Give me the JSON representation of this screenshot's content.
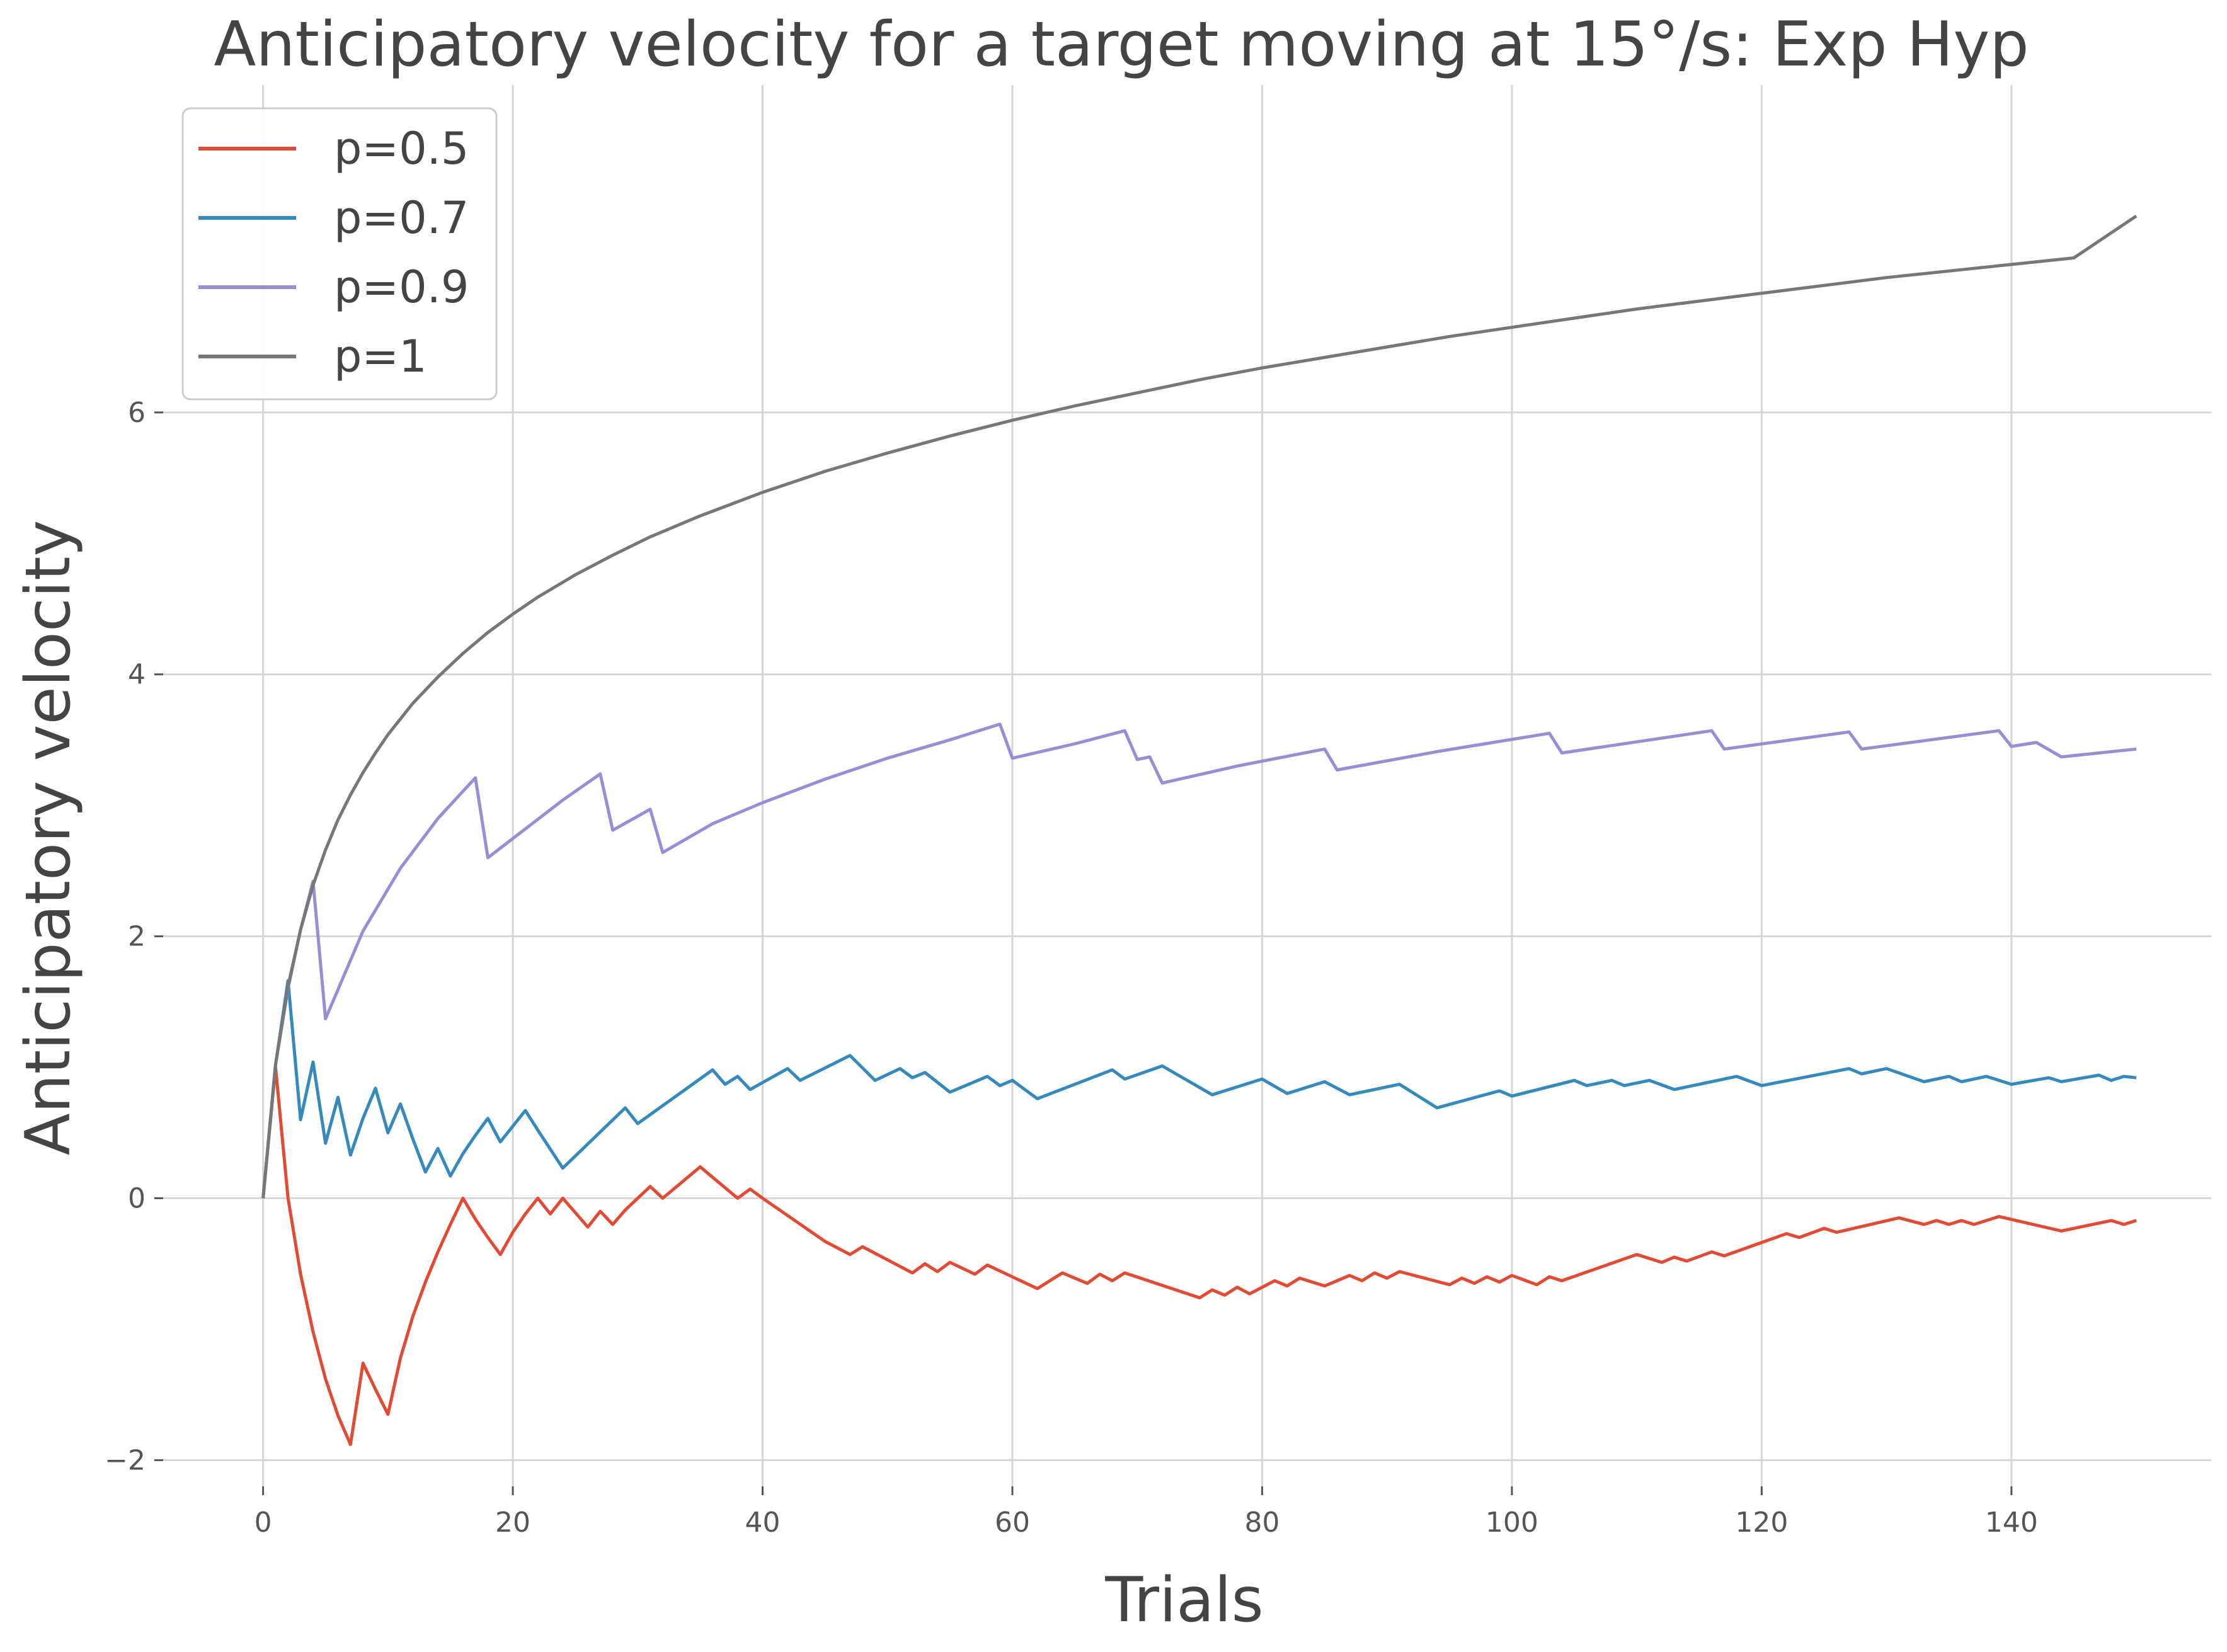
{
  "chart_data": {
    "type": "line",
    "title": "Anticipatory velocity for a target moving at 15°/s: Exp Hyp",
    "xlabel": "Trials",
    "ylabel": "Anticipatory velocity",
    "xlim": [
      -8,
      156
    ],
    "ylim": [
      -2.2,
      8.5
    ],
    "xticks": [
      0,
      20,
      40,
      60,
      80,
      100,
      120,
      140
    ],
    "yticks": [
      -2,
      0,
      2,
      4,
      6
    ],
    "grid": true,
    "legend_position": "top-left",
    "series": [
      {
        "name": "p=0.5",
        "color": "#E24A33",
        "points": [
          [
            0,
            0
          ],
          [
            1,
            1.0
          ],
          [
            2,
            0.0
          ],
          [
            3,
            -0.58
          ],
          [
            4,
            -1.02
          ],
          [
            5,
            -1.38
          ],
          [
            6,
            -1.66
          ],
          [
            7,
            -1.88
          ],
          [
            8,
            -1.26
          ],
          [
            9,
            -1.46
          ],
          [
            10,
            -1.65
          ],
          [
            11,
            -1.22
          ],
          [
            12,
            -0.9
          ],
          [
            13,
            -0.64
          ],
          [
            14,
            -0.41
          ],
          [
            15,
            -0.2
          ],
          [
            16,
            0.0
          ],
          [
            17,
            -0.16
          ],
          [
            18,
            -0.3
          ],
          [
            19,
            -0.43
          ],
          [
            20,
            -0.26
          ],
          [
            21,
            -0.12
          ],
          [
            22,
            0.0
          ],
          [
            23,
            -0.12
          ],
          [
            24,
            0.0
          ],
          [
            25,
            -0.11
          ],
          [
            26,
            -0.22
          ],
          [
            27,
            -0.1
          ],
          [
            28,
            -0.2
          ],
          [
            29,
            -0.09
          ],
          [
            30,
            0.0
          ],
          [
            31,
            0.09
          ],
          [
            32,
            0.0
          ],
          [
            33,
            0.08
          ],
          [
            34,
            0.16
          ],
          [
            35,
            0.24
          ],
          [
            36,
            0.16
          ],
          [
            37,
            0.08
          ],
          [
            38,
            0.0
          ],
          [
            39,
            0.07
          ],
          [
            40,
            0.0
          ],
          [
            45,
            -0.33
          ],
          [
            47,
            -0.43
          ],
          [
            48,
            -0.37
          ],
          [
            52,
            -0.57
          ],
          [
            53,
            -0.5
          ],
          [
            54,
            -0.56
          ],
          [
            55,
            -0.49
          ],
          [
            57,
            -0.58
          ],
          [
            58,
            -0.51
          ],
          [
            62,
            -0.69
          ],
          [
            64,
            -0.57
          ],
          [
            66,
            -0.65
          ],
          [
            67,
            -0.58
          ],
          [
            68,
            -0.63
          ],
          [
            69,
            -0.57
          ],
          [
            75,
            -0.76
          ],
          [
            76,
            -0.7
          ],
          [
            77,
            -0.74
          ],
          [
            78,
            -0.68
          ],
          [
            79,
            -0.73
          ],
          [
            81,
            -0.63
          ],
          [
            82,
            -0.67
          ],
          [
            83,
            -0.61
          ],
          [
            85,
            -0.67
          ],
          [
            87,
            -0.59
          ],
          [
            88,
            -0.63
          ],
          [
            89,
            -0.57
          ],
          [
            90,
            -0.61
          ],
          [
            91,
            -0.56
          ],
          [
            95,
            -0.66
          ],
          [
            96,
            -0.61
          ],
          [
            97,
            -0.65
          ],
          [
            98,
            -0.6
          ],
          [
            99,
            -0.64
          ],
          [
            100,
            -0.59
          ],
          [
            102,
            -0.66
          ],
          [
            103,
            -0.6
          ],
          [
            104,
            -0.63
          ],
          [
            110,
            -0.43
          ],
          [
            112,
            -0.49
          ],
          [
            113,
            -0.45
          ],
          [
            114,
            -0.48
          ],
          [
            116,
            -0.41
          ],
          [
            117,
            -0.44
          ],
          [
            122,
            -0.27
          ],
          [
            123,
            -0.3
          ],
          [
            125,
            -0.23
          ],
          [
            126,
            -0.26
          ],
          [
            131,
            -0.15
          ],
          [
            133,
            -0.2
          ],
          [
            134,
            -0.17
          ],
          [
            135,
            -0.2
          ],
          [
            136,
            -0.17
          ],
          [
            137,
            -0.2
          ],
          [
            139,
            -0.14
          ],
          [
            144,
            -0.25
          ],
          [
            148,
            -0.17
          ],
          [
            149,
            -0.2
          ],
          [
            150,
            -0.17
          ]
        ]
      },
      {
        "name": "p=0.7",
        "color": "#348ABD",
        "points": [
          [
            0,
            0
          ],
          [
            1,
            1.02
          ],
          [
            2,
            1.66
          ],
          [
            3,
            0.6
          ],
          [
            4,
            1.04
          ],
          [
            5,
            0.42
          ],
          [
            6,
            0.77
          ],
          [
            7,
            0.33
          ],
          [
            8,
            0.61
          ],
          [
            9,
            0.84
          ],
          [
            10,
            0.5
          ],
          [
            11,
            0.72
          ],
          [
            12,
            0.45
          ],
          [
            13,
            0.2
          ],
          [
            14,
            0.38
          ],
          [
            15,
            0.17
          ],
          [
            16,
            0.34
          ],
          [
            17,
            0.48
          ],
          [
            18,
            0.61
          ],
          [
            19,
            0.43
          ],
          [
            21,
            0.67
          ],
          [
            22,
            0.52
          ],
          [
            24,
            0.23
          ],
          [
            29,
            0.69
          ],
          [
            30,
            0.57
          ],
          [
            36,
            0.98
          ],
          [
            37,
            0.87
          ],
          [
            38,
            0.93
          ],
          [
            39,
            0.83
          ],
          [
            42,
            0.99
          ],
          [
            43,
            0.9
          ],
          [
            47,
            1.09
          ],
          [
            49,
            0.9
          ],
          [
            51,
            0.99
          ],
          [
            52,
            0.92
          ],
          [
            53,
            0.96
          ],
          [
            55,
            0.81
          ],
          [
            58,
            0.93
          ],
          [
            59,
            0.86
          ],
          [
            60,
            0.9
          ],
          [
            62,
            0.76
          ],
          [
            68,
            0.98
          ],
          [
            69,
            0.91
          ],
          [
            72,
            1.01
          ],
          [
            76,
            0.79
          ],
          [
            80,
            0.91
          ],
          [
            82,
            0.8
          ],
          [
            85,
            0.89
          ],
          [
            87,
            0.79
          ],
          [
            91,
            0.87
          ],
          [
            94,
            0.69
          ],
          [
            99,
            0.82
          ],
          [
            100,
            0.78
          ],
          [
            105,
            0.9
          ],
          [
            106,
            0.86
          ],
          [
            108,
            0.9
          ],
          [
            109,
            0.86
          ],
          [
            111,
            0.9
          ],
          [
            113,
            0.83
          ],
          [
            118,
            0.93
          ],
          [
            120,
            0.86
          ],
          [
            127,
            0.99
          ],
          [
            128,
            0.95
          ],
          [
            130,
            0.99
          ],
          [
            133,
            0.89
          ],
          [
            135,
            0.93
          ],
          [
            136,
            0.89
          ],
          [
            138,
            0.93
          ],
          [
            140,
            0.87
          ],
          [
            143,
            0.92
          ],
          [
            144,
            0.89
          ],
          [
            147,
            0.94
          ],
          [
            148,
            0.9
          ],
          [
            149,
            0.93
          ],
          [
            150,
            0.92
          ]
        ]
      },
      {
        "name": "p=0.9",
        "color": "#988ED5",
        "points": [
          [
            0,
            0
          ],
          [
            1,
            1.02
          ],
          [
            2,
            1.6
          ],
          [
            3,
            2.05
          ],
          [
            4,
            2.42
          ],
          [
            5,
            1.37
          ],
          [
            8,
            2.04
          ],
          [
            11,
            2.52
          ],
          [
            14,
            2.9
          ],
          [
            17,
            3.21
          ],
          [
            18,
            2.6
          ],
          [
            21,
            2.82
          ],
          [
            24,
            3.04
          ],
          [
            27,
            3.24
          ],
          [
            28,
            2.81
          ],
          [
            31,
            2.97
          ],
          [
            32,
            2.64
          ],
          [
            36,
            2.86
          ],
          [
            40,
            3.02
          ],
          [
            45,
            3.2
          ],
          [
            50,
            3.36
          ],
          [
            55,
            3.5
          ],
          [
            59,
            3.62
          ],
          [
            60,
            3.36
          ],
          [
            65,
            3.47
          ],
          [
            69,
            3.57
          ],
          [
            70,
            3.35
          ],
          [
            71,
            3.37
          ],
          [
            72,
            3.17
          ],
          [
            78,
            3.3
          ],
          [
            85,
            3.43
          ],
          [
            86,
            3.27
          ],
          [
            94,
            3.41
          ],
          [
            103,
            3.55
          ],
          [
            104,
            3.4
          ],
          [
            116,
            3.57
          ],
          [
            117,
            3.43
          ],
          [
            127,
            3.56
          ],
          [
            128,
            3.43
          ],
          [
            139,
            3.57
          ],
          [
            140,
            3.45
          ],
          [
            142,
            3.48
          ],
          [
            144,
            3.37
          ],
          [
            150,
            3.43
          ]
        ]
      },
      {
        "name": "p=1",
        "color": "#777777",
        "points": [
          [
            0,
            0
          ],
          [
            1,
            1.02
          ],
          [
            2,
            1.62
          ],
          [
            3,
            2.05
          ],
          [
            4,
            2.39
          ],
          [
            5,
            2.66
          ],
          [
            6,
            2.89
          ],
          [
            7,
            3.08
          ],
          [
            8,
            3.25
          ],
          [
            9,
            3.4
          ],
          [
            10,
            3.54
          ],
          [
            12,
            3.78
          ],
          [
            14,
            3.98
          ],
          [
            16,
            4.16
          ],
          [
            18,
            4.32
          ],
          [
            20,
            4.46
          ],
          [
            22,
            4.59
          ],
          [
            25,
            4.76
          ],
          [
            28,
            4.91
          ],
          [
            31,
            5.05
          ],
          [
            35,
            5.21
          ],
          [
            40,
            5.39
          ],
          [
            45,
            5.55
          ],
          [
            50,
            5.69
          ],
          [
            55,
            5.82
          ],
          [
            60,
            5.94
          ],
          [
            65,
            6.05
          ],
          [
            70,
            6.15
          ],
          [
            75,
            6.25
          ],
          [
            80,
            6.34
          ],
          [
            85,
            6.42
          ],
          [
            90,
            6.5
          ],
          [
            95,
            6.58
          ],
          [
            100,
            6.65
          ],
          [
            105,
            6.72
          ],
          [
            110,
            6.79
          ],
          [
            115,
            6.85
          ],
          [
            120,
            6.91
          ],
          [
            125,
            6.97
          ],
          [
            130,
            7.03
          ],
          [
            135,
            7.08
          ],
          [
            140,
            7.13
          ],
          [
            145,
            7.18
          ],
          [
            150,
            7.5
          ]
        ]
      }
    ]
  }
}
